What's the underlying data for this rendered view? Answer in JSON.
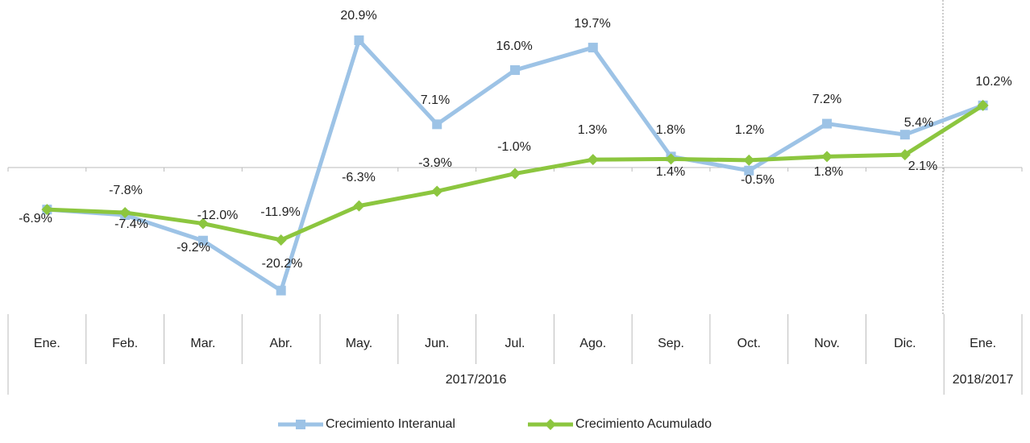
{
  "chart_data": {
    "type": "line",
    "categories": [
      "Ene.",
      "Feb.",
      "Mar.",
      "Abr.",
      "May.",
      "Jun.",
      "Jul.",
      "Ago.",
      "Sep.",
      "Oct.",
      "Nov.",
      "Dic.",
      "Ene."
    ],
    "category_groups": [
      "2017/2016",
      "2018/2017"
    ],
    "series": [
      {
        "name": "Crecimiento Interanual",
        "color": "#9dc3e6",
        "marker": "square",
        "values": [
          -6.9,
          -7.8,
          -12.0,
          -20.2,
          20.9,
          7.1,
          16.0,
          19.7,
          1.8,
          -0.5,
          7.2,
          5.4,
          10.2
        ],
        "value_labels": [
          "-6.9%",
          "-7.8%",
          "-12.0%",
          "-20.2%",
          "20.9%",
          "7.1%",
          "16.0%",
          "19.7%",
          "1.8%",
          "-0.5%",
          "7.2%",
          "5.4%",
          "10.2%"
        ]
      },
      {
        "name": "Crecimiento Acumulado",
        "color": "#8cc63f",
        "marker": "diamond",
        "values": [
          -6.9,
          -7.4,
          -9.2,
          -11.9,
          -6.3,
          -3.9,
          -1.0,
          1.3,
          1.4,
          1.2,
          1.8,
          2.1,
          10.2
        ],
        "value_labels": [
          null,
          "-7.4%",
          "-9.2%",
          "-11.9%",
          "-6.3%",
          "-3.9%",
          "-1.0%",
          "1.3%",
          "1.4%",
          "1.2%",
          "1.8%",
          "2.1%",
          null
        ]
      }
    ],
    "legend": "bottom"
  }
}
